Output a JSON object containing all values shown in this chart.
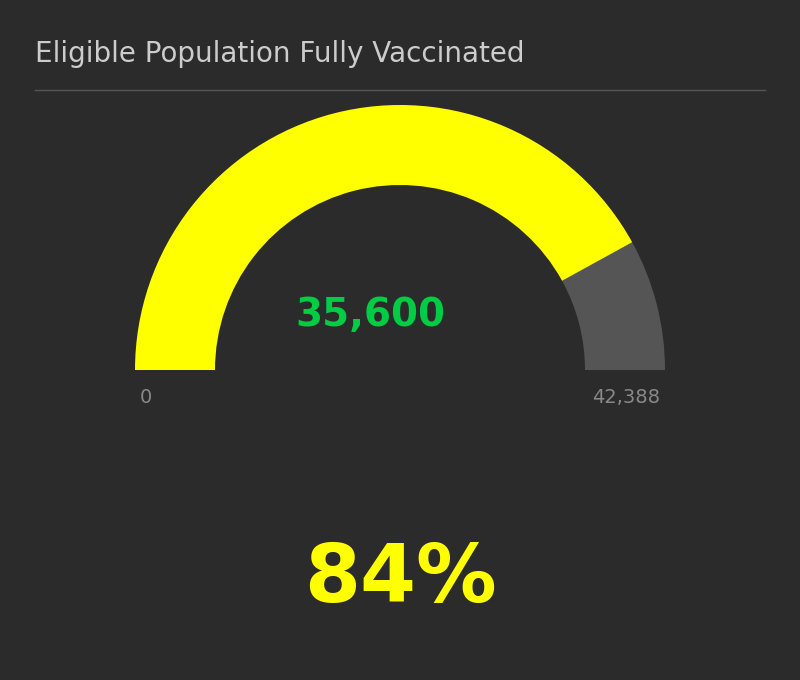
{
  "title": "Eligible Population Fully Vaccinated",
  "title_color": "#cccccc",
  "background_color": "#2b2b2b",
  "value": 35600,
  "max_value": 42388,
  "percentage": 84,
  "percentage_color": "#ffff00",
  "value_color": "#00cc44",
  "min_label": "0",
  "max_label": "42,388",
  "label_color": "#888888",
  "gauge_filled_color": "#ffff00",
  "gauge_empty_color": "#555555",
  "line_color": "#555555"
}
